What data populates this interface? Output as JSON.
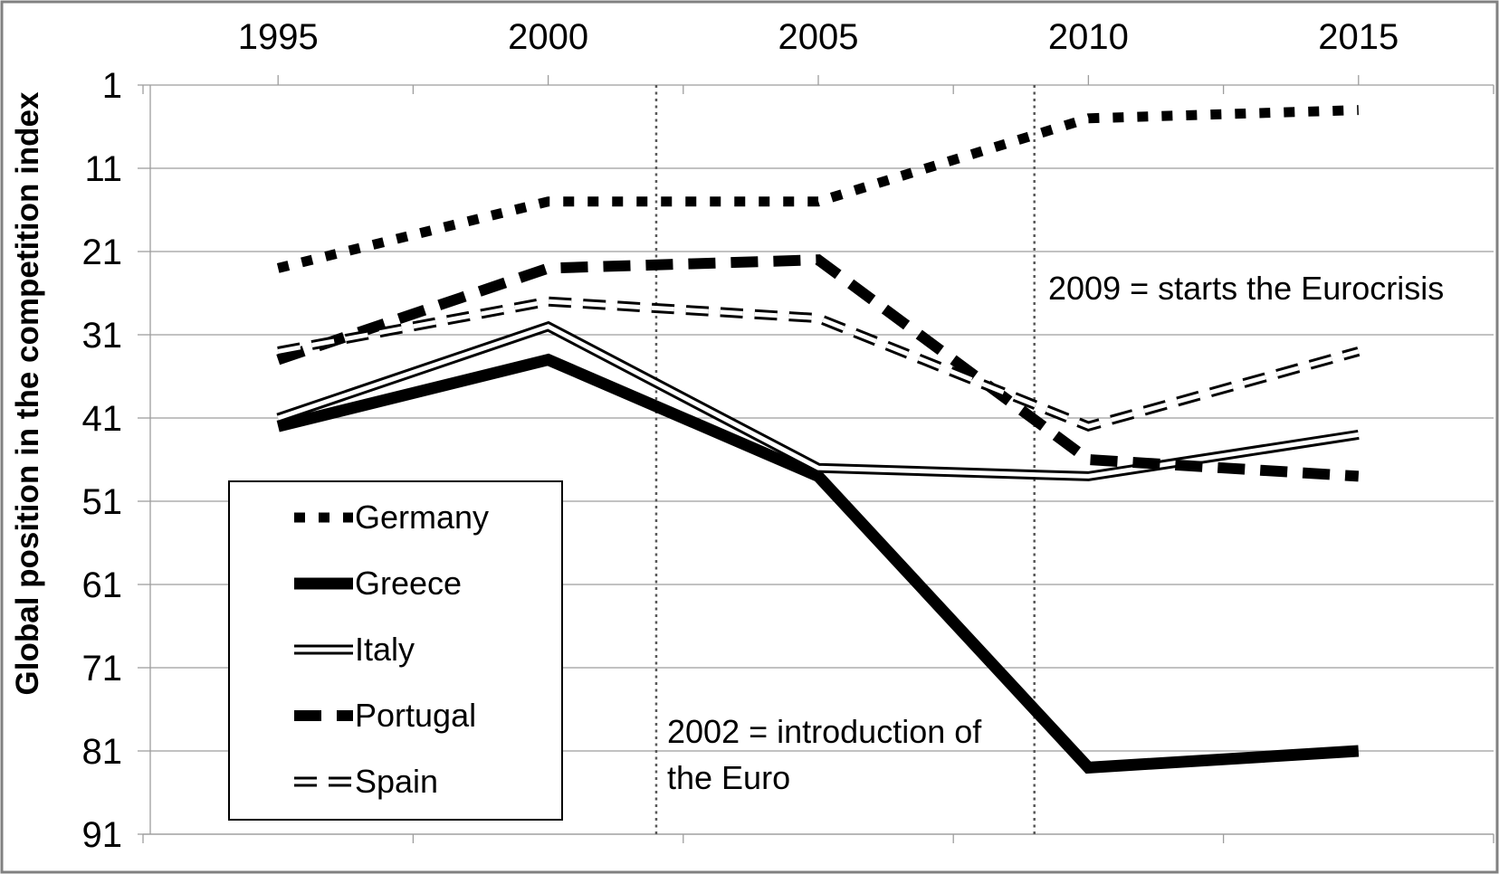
{
  "annotations": {
    "eurocrisis": "2009 = starts the Eurocrisis",
    "euro_intro_line1": "2002 = introduction of",
    "euro_intro_line2": "the Euro"
  },
  "colors": {
    "line": "#000000",
    "gridline": "#9d9d9d",
    "frame": "#808080",
    "reference_line": "#595959",
    "background": "#ffffff"
  },
  "chart_data": {
    "type": "line",
    "title": "",
    "xlabel": "",
    "ylabel": "Global position in the competition index",
    "x": [
      1995,
      2000,
      2005,
      2010,
      2015
    ],
    "y_inverted": true,
    "ylim": [
      1,
      91
    ],
    "y_ticks": [
      1,
      11,
      21,
      31,
      41,
      51,
      61,
      71,
      81,
      91
    ],
    "grid": "horizontal",
    "legend_position": "inside-bottom-left",
    "series": [
      {
        "name": "Germany",
        "style": "dotted-thick",
        "values": [
          23,
          15,
          15,
          5,
          4
        ]
      },
      {
        "name": "Greece",
        "style": "solid-thick",
        "values": [
          42,
          34,
          48,
          83,
          81
        ]
      },
      {
        "name": "Italy",
        "style": "double-solid",
        "values": [
          41,
          30,
          47,
          48,
          43
        ]
      },
      {
        "name": "Portugal",
        "style": "dashed-thick",
        "values": [
          34,
          23,
          22,
          46,
          48
        ]
      },
      {
        "name": "Spain",
        "style": "double-dashed",
        "values": [
          33,
          27,
          29,
          42,
          33
        ]
      }
    ],
    "reference_lines": [
      {
        "x": 2002,
        "label": "2002 = introduction of the Euro"
      },
      {
        "x": 2009,
        "label": "2009 = starts the Eurocrisis"
      }
    ]
  }
}
